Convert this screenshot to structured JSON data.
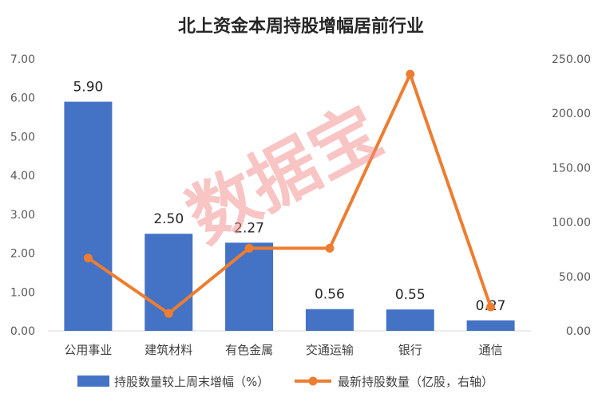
{
  "chart_data": {
    "type": "bar+line",
    "title": "北上资金本周持股增幅居前行业",
    "categories": [
      "公用事业",
      "建筑材料",
      "有色金属",
      "交通运输",
      "银行",
      "通信"
    ],
    "series": [
      {
        "name": "持股数量较上周末增幅（%）",
        "type": "bar",
        "axis": "left",
        "color": "#4472C4",
        "values": [
          5.9,
          2.5,
          2.27,
          0.56,
          0.55,
          0.27
        ],
        "labels": [
          "5.90",
          "2.50",
          "2.27",
          "0.56",
          "0.55",
          "0.27"
        ]
      },
      {
        "name": "最新持股数量（亿股，右轴）",
        "type": "line",
        "axis": "right",
        "color": "#ED7D31",
        "values": [
          67,
          16,
          76,
          76,
          236,
          22
        ]
      }
    ],
    "y_left": {
      "min": 0,
      "max": 7,
      "ticks": [
        "0.00",
        "1.00",
        "2.00",
        "3.00",
        "4.00",
        "5.00",
        "6.00",
        "7.00"
      ]
    },
    "y_right": {
      "min": 0,
      "max": 250,
      "ticks": [
        "0.00",
        "50.00",
        "100.00",
        "150.00",
        "200.00",
        "250.00"
      ]
    },
    "grid": false,
    "legend_position": "bottom"
  },
  "watermark": "数据宝"
}
